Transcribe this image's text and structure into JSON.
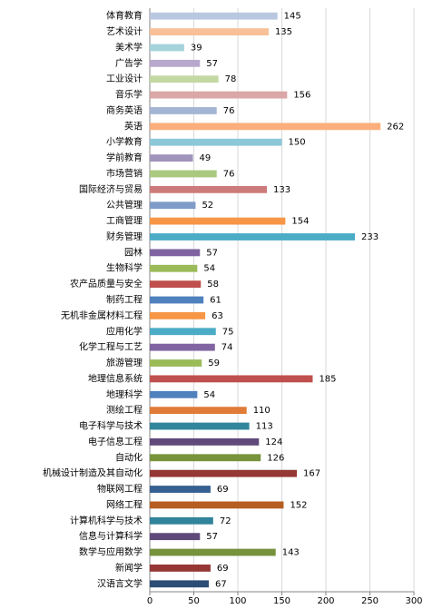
{
  "chart_data": {
    "type": "bar",
    "orientation": "horizontal",
    "categories": [
      "体育教育",
      "艺术设计",
      "美术学",
      "广告学",
      "工业设计",
      "音乐学",
      "商务英语",
      "英语",
      "小学教育",
      "学前教育",
      "市场营销",
      "国际经济与贸易",
      "公共管理",
      "工商管理",
      "财务管理",
      "园林",
      "生物科学",
      "农产品质量与安全",
      "制药工程",
      "无机非金属材料工程",
      "应用化学",
      "化学工程与工艺",
      "旅游管理",
      "地理信息系统",
      "地理科学",
      "测绘工程",
      "电子科学与技术",
      "电子信息工程",
      "自动化",
      "机械设计制造及其自动化",
      "物联网工程",
      "网络工程",
      "计算机科学与技术",
      "信息与计算科学",
      "数学与应用数学",
      "新闻学",
      "汉语言文学"
    ],
    "values": [
      145,
      135,
      39,
      57,
      78,
      156,
      76,
      262,
      150,
      49,
      76,
      133,
      52,
      154,
      233,
      57,
      54,
      58,
      61,
      63,
      75,
      74,
      59,
      185,
      54,
      110,
      113,
      124,
      126,
      167,
      69,
      152,
      72,
      57,
      143,
      69,
      67
    ],
    "colors": [
      "#b9c8e0",
      "#f9bf96",
      "#a5d3dc",
      "#b8a9cc",
      "#c4d8a1",
      "#daa6a6",
      "#a5b6d4",
      "#fbae7c",
      "#8cc8d8",
      "#a094bc",
      "#aac97e",
      "#cd7b7a",
      "#7f9cc9",
      "#f79646",
      "#4bacc6",
      "#8064a2",
      "#9bbb59",
      "#c0504d",
      "#4f81bd",
      "#f79646",
      "#4bacc6",
      "#8064a2",
      "#9bbb59",
      "#c0504d",
      "#4f81bd",
      "#e07b39",
      "#31859c",
      "#604a7b",
      "#77933c",
      "#953735",
      "#366092",
      "#b65d21",
      "#31849b",
      "#5f497a",
      "#76923c",
      "#953735",
      "#2c4d75"
    ],
    "xlim": [
      0,
      300
    ],
    "xticks": [
      0,
      50,
      100,
      150,
      200,
      250,
      300
    ],
    "grid": true
  }
}
